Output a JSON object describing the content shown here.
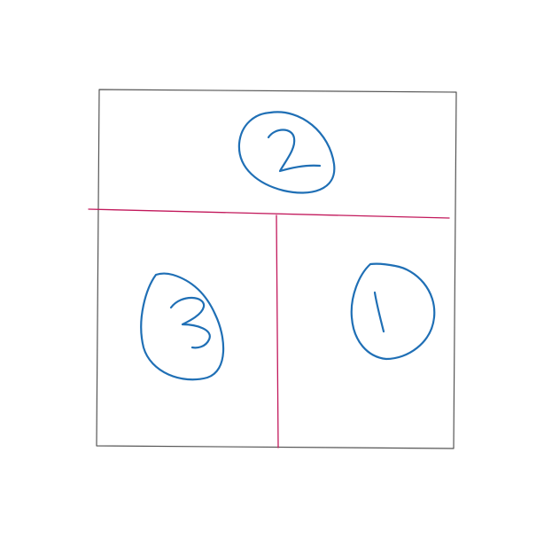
{
  "colors": {
    "background": "#ffffff",
    "frame_stroke": "#555555",
    "divider_stroke": "#c2185b",
    "ink_stroke": "#1f6fb5"
  },
  "diagram": {
    "description_type": "hand-drawn layout sketch",
    "regions": [
      {
        "id": "top",
        "number": "2"
      },
      {
        "id": "bottom-left",
        "number": "3"
      },
      {
        "id": "bottom-right",
        "number": "1"
      }
    ]
  }
}
